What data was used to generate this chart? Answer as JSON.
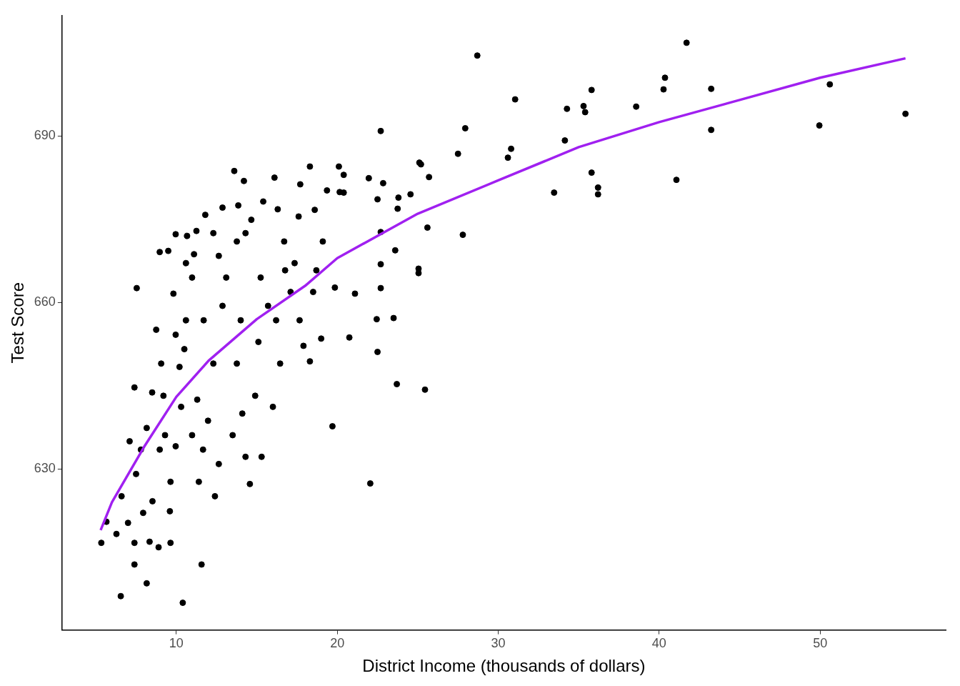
{
  "chart_data": {
    "type": "scatter",
    "xlabel": "District Income (thousands of dollars)",
    "ylabel": "Test Score",
    "xlim": [
      2.9,
      57.8
    ],
    "xticks": [
      10,
      20,
      30,
      40,
      50
    ],
    "ylim": [
      601,
      711.7
    ],
    "yticks": [
      630,
      660,
      690
    ],
    "grid": false,
    "legend": false,
    "marker": "circle",
    "series": [
      {
        "color": "#000000",
        "x": [
          5.34,
          5.66,
          6.28,
          6.6,
          6.55,
          7.0,
          7.4,
          7.4,
          7.54,
          7.4,
          7.1,
          7.5,
          7.94,
          8.16,
          8.34,
          8.52,
          8.9,
          8.97,
          8.75,
          9.5,
          9.6,
          9.64,
          9.82,
          9.96,
          10.4,
          10.67,
          10.6,
          11.1,
          11.25,
          11.57,
          11.8,
          12.3,
          12.87,
          13.6,
          14.2,
          13.85,
          14.3,
          15.4,
          16.1,
          16.3,
          17.7,
          18.3,
          17.6,
          18.6,
          19.36,
          20.1,
          20.4,
          20.15,
          20.4,
          21.96,
          22.7,
          22.85,
          22.5,
          23.8,
          24.55,
          25.1,
          25.2,
          25.7,
          23.75,
          25.6,
          25.05,
          25.05,
          25.45,
          23.7,
          23.5,
          22.45,
          22.5,
          22.05,
          19.7,
          19.85,
          20.75,
          21.1,
          22.7,
          22.7,
          22.7,
          23.6,
          27.5,
          27.95,
          27.8,
          28.7,
          30.6,
          30.8,
          31.05,
          33.47,
          34.14,
          34.27,
          35.3,
          35.4,
          35.8,
          35.8,
          36.2,
          36.2,
          38.57,
          40.27,
          40.36,
          41.07,
          41.7,
          43.23,
          43.23,
          49.95,
          50.6,
          55.3,
          8.97,
          9.2,
          9.3,
          9.64,
          9.96,
          10.3,
          10.5,
          10.6,
          10.98,
          11.3,
          11.4,
          11.66,
          11.97,
          12.3,
          12.4,
          12.64,
          12.87,
          13.1,
          13.5,
          13.76,
          14.0,
          14.1,
          14.3,
          14.57,
          14.9,
          15.1,
          15.24,
          15.3,
          15.7,
          16.0,
          16.2,
          16.45,
          16.76,
          17.1,
          17.35,
          17.66,
          17.9,
          18.3,
          18.5,
          18.7,
          19.0,
          19.1,
          9.96,
          10.2,
          11.7,
          10.98,
          9.06,
          8.5,
          8.16,
          7.8,
          13.76,
          14.66,
          12.64,
          16.7
        ],
        "values": [
          616.7,
          620.5,
          618.3,
          625.1,
          607.1,
          620.3,
          616.7,
          612.8,
          662.6,
          644.7,
          635.0,
          629.1,
          622.1,
          609.4,
          616.9,
          624.2,
          615.9,
          669.1,
          655.1,
          669.3,
          622.4,
          616.7,
          661.6,
          672.3,
          605.9,
          672.0,
          667.1,
          668.7,
          672.9,
          612.8,
          675.8,
          672.5,
          677.1,
          683.7,
          681.9,
          677.5,
          672.5,
          678.2,
          682.5,
          676.8,
          681.3,
          684.5,
          675.5,
          676.7,
          680.2,
          684.5,
          683.0,
          679.9,
          679.8,
          682.4,
          690.9,
          681.5,
          678.6,
          678.9,
          679.5,
          685.2,
          684.9,
          682.6,
          676.9,
          673.5,
          666.1,
          665.3,
          644.3,
          645.3,
          657.2,
          657.0,
          651.1,
          627.4,
          637.7,
          662.7,
          653.7,
          661.6,
          666.9,
          672.7,
          662.6,
          669.4,
          686.8,
          691.4,
          672.2,
          704.5,
          686.1,
          687.7,
          696.6,
          679.8,
          689.2,
          694.9,
          695.4,
          694.3,
          698.3,
          683.4,
          680.7,
          679.5,
          695.3,
          698.4,
          700.5,
          682.1,
          706.8,
          698.5,
          691.1,
          691.9,
          699.3,
          694.0,
          633.5,
          643.2,
          636.1,
          627.7,
          634.1,
          641.2,
          651.6,
          656.8,
          636.1,
          642.5,
          627.7,
          633.5,
          638.7,
          649.0,
          625.1,
          630.9,
          659.4,
          664.5,
          636.1,
          649.0,
          656.8,
          640.0,
          632.2,
          627.3,
          643.2,
          652.9,
          664.5,
          632.2,
          659.4,
          641.2,
          656.8,
          649.0,
          665.8,
          661.9,
          667.1,
          656.8,
          652.2,
          649.4,
          661.9,
          665.8,
          653.5,
          671.0,
          654.2,
          648.4,
          656.8,
          664.5,
          649.0,
          643.8,
          637.4,
          633.5,
          671.0,
          674.9,
          668.4,
          671.0
        ]
      },
      {
        "type": "line",
        "color": "#a020f0",
        "marker": "none",
        "x": [
          5.3,
          6,
          7,
          8,
          10,
          12,
          15,
          18,
          20,
          25,
          30,
          35,
          40,
          45,
          50,
          55.3
        ],
        "values": [
          619,
          624,
          629,
          634,
          643,
          649.5,
          657,
          663,
          668,
          676,
          682,
          688,
          692.5,
          696.5,
          700.5,
          704
        ]
      }
    ]
  }
}
